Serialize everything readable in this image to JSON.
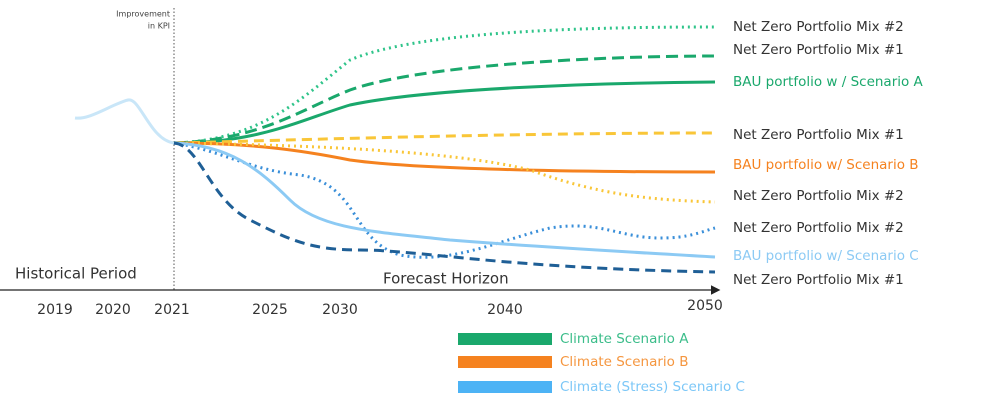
{
  "axis": {
    "y_label_line1": "Improvement",
    "y_label_line2": "in KPI",
    "period_left": "Historical Period",
    "period_right": "Forecast Horizon",
    "years": [
      "2019",
      "2020",
      "2021",
      "2025",
      "2030",
      "2040",
      "2050"
    ]
  },
  "line_labels": [
    "Net Zero Portfolio Mix #2",
    "Net Zero Portfolio Mix #1",
    "BAU portfolio w /  Scenario A",
    "Net Zero Portfolio Mix #1",
    "BAU portfolio w/ Scenario B",
    "Net Zero Portfolio Mix #2",
    "Net Zero Portfolio Mix #2",
    "BAU portfolio w/ Scenario C",
    "Net Zero Portfolio Mix #1"
  ],
  "legend": [
    "Climate Scenario A",
    "Climate Scenario B",
    "Climate (Stress) Scenario C"
  ]
}
